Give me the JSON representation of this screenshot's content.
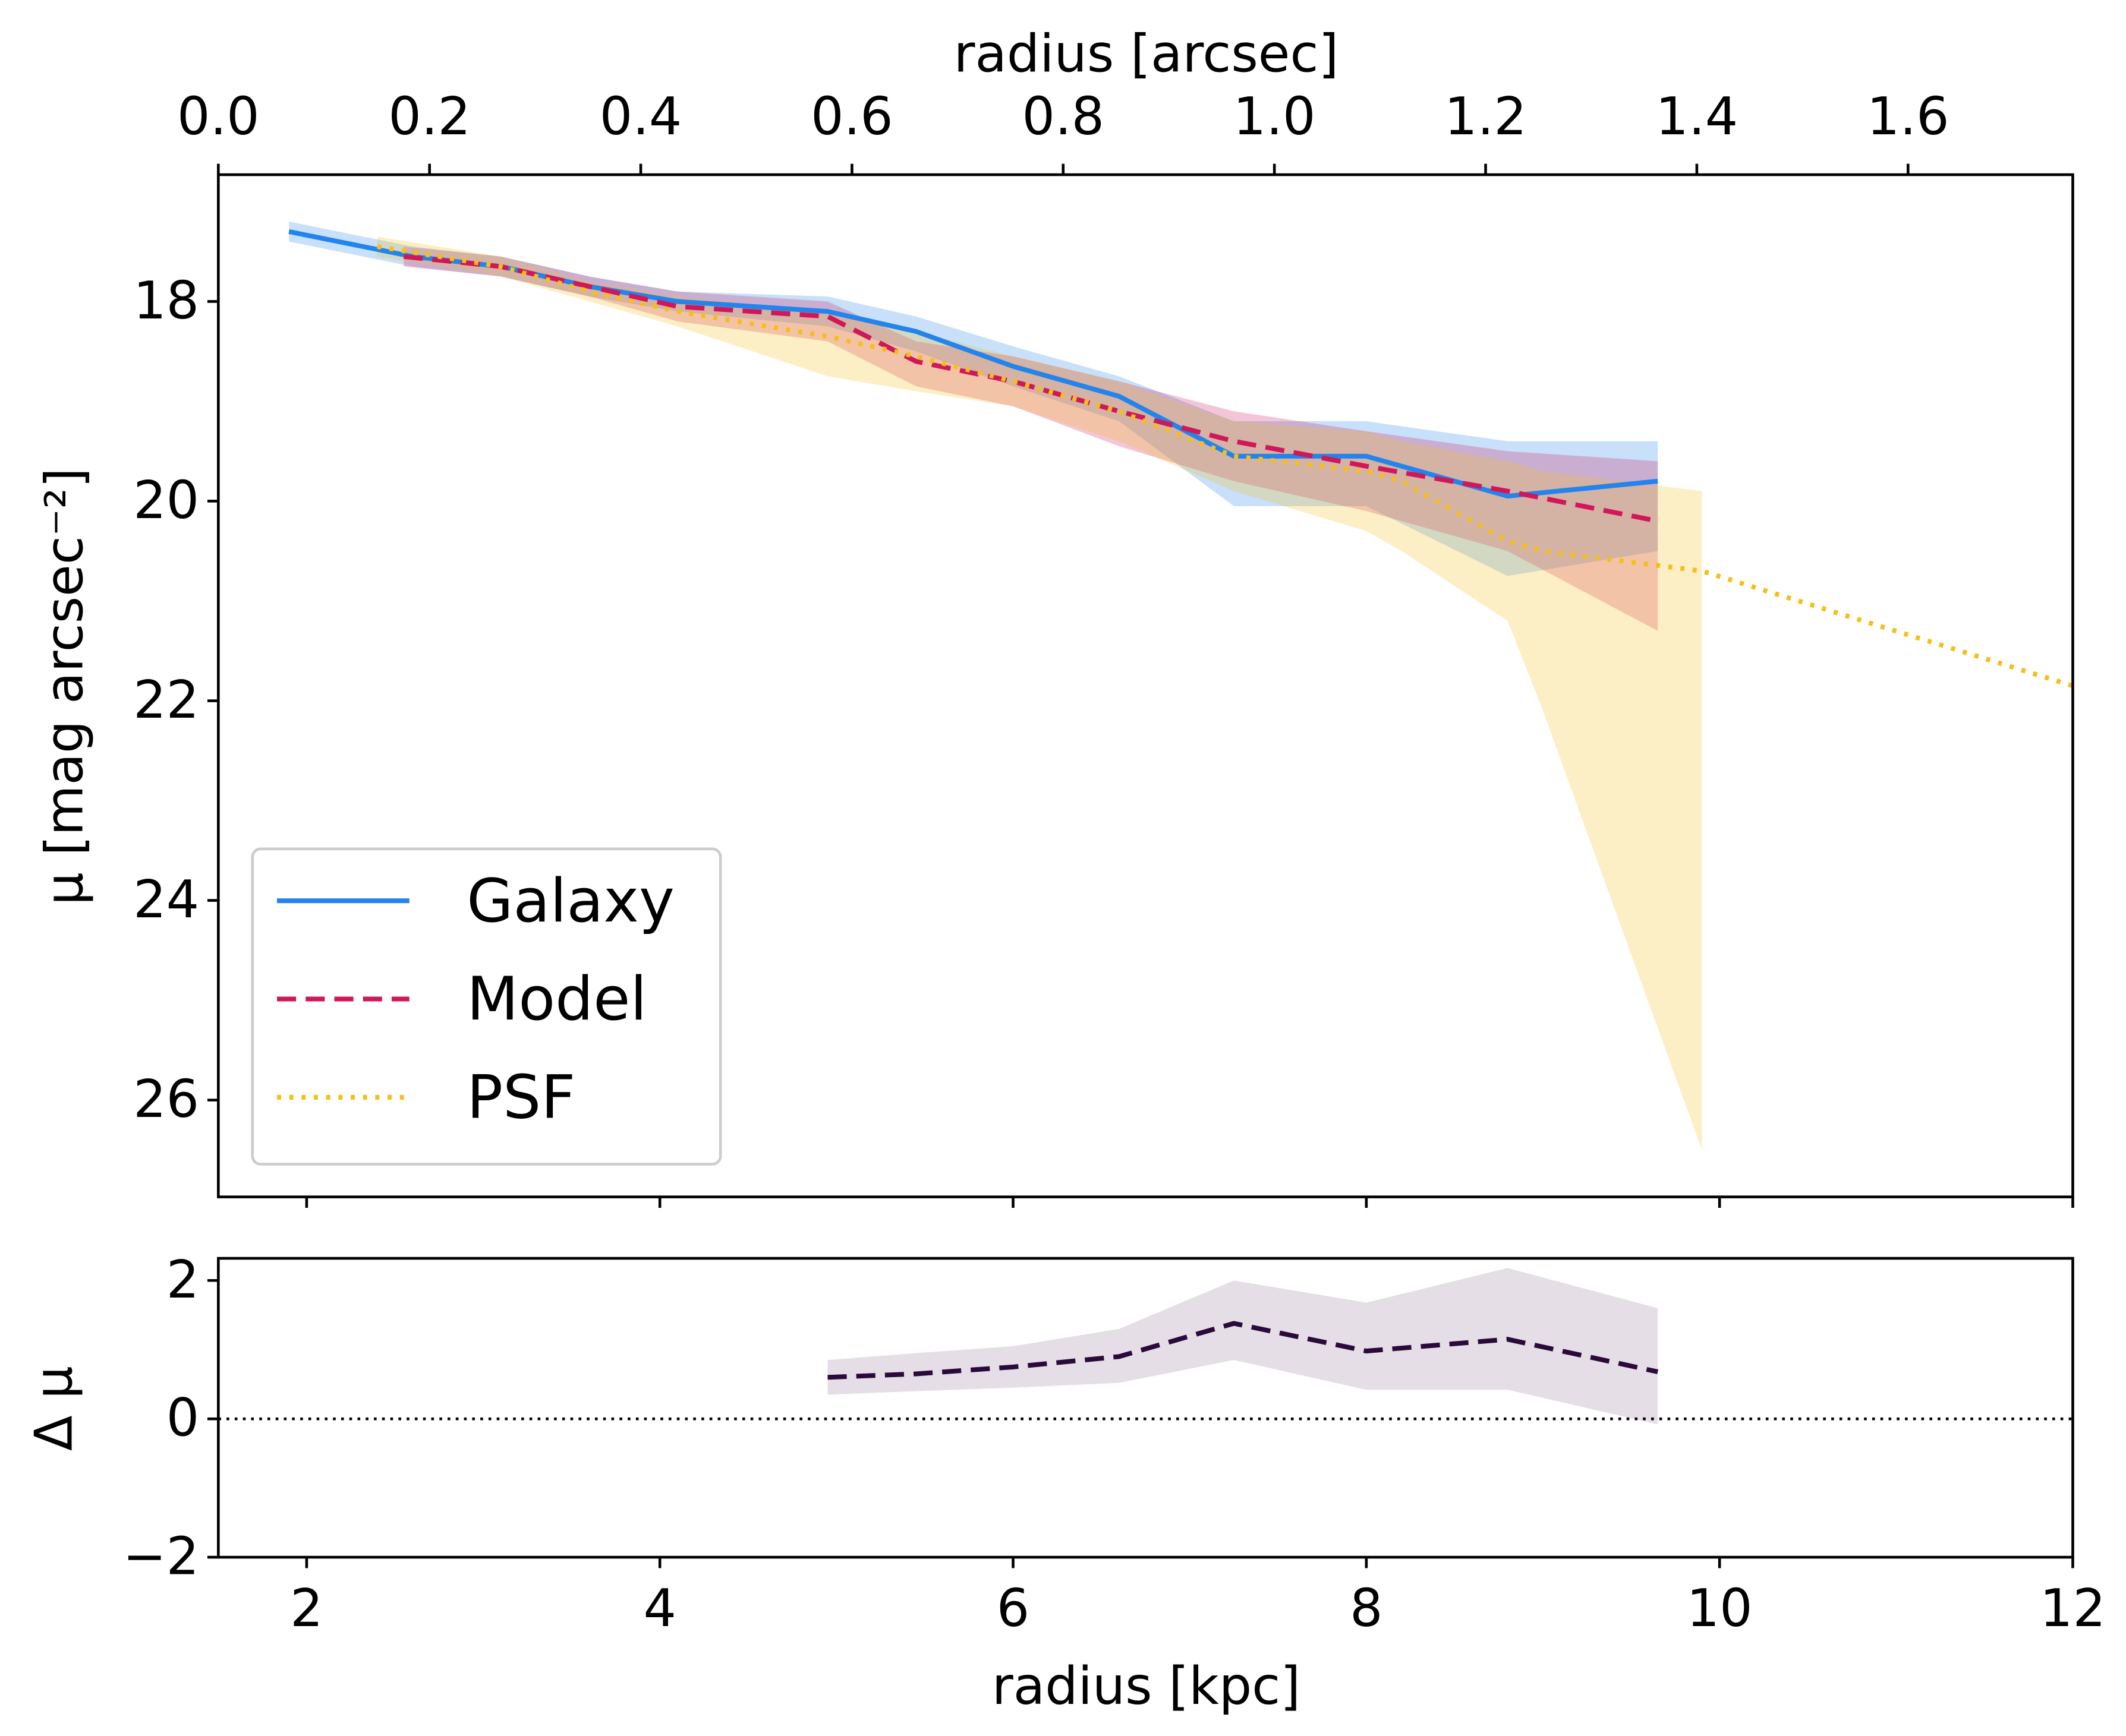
{
  "chart_data": [
    {
      "type": "line",
      "x2label": "radius [arcsec]",
      "ylabel": "μ [mag arcsec⁻²]",
      "xlim": [
        1.5,
        12
      ],
      "xticks": [
        2,
        4,
        6,
        8,
        10,
        12
      ],
      "x2lim": [
        0,
        1.756
      ],
      "x2ticks": [
        {
          "value": 0,
          "label": "0.0"
        },
        0.2,
        0.4,
        0.6,
        0.8,
        {
          "value": 1,
          "label": "1.0"
        },
        1.2,
        1.4,
        1.6
      ],
      "ylim": [
        16.73,
        26.97
      ],
      "y_inverted": true,
      "yticks": [
        18,
        20,
        22,
        24,
        26
      ],
      "legend": "lower left",
      "series": [
        {
          "name": "Galaxy",
          "color": "#2284ec",
          "style": "solid",
          "x": [
            1.9,
            2.6,
            3.1,
            3.6,
            4.1,
            4.95,
            5.45,
            6.0,
            6.6,
            7.25,
            8.0,
            8.8,
            9.65
          ],
          "values": [
            17.3,
            17.55,
            17.65,
            17.85,
            18.0,
            18.1,
            18.3,
            18.65,
            18.95,
            19.55,
            19.55,
            19.95,
            19.8
          ],
          "lower": [
            17.2,
            17.45,
            17.55,
            17.75,
            17.9,
            17.95,
            18.15,
            18.45,
            18.75,
            19.2,
            19.2,
            19.4,
            19.4
          ],
          "upper": [
            17.4,
            17.65,
            17.75,
            17.95,
            18.1,
            18.25,
            18.5,
            18.85,
            19.2,
            20.05,
            20.05,
            20.75,
            20.5
          ]
        },
        {
          "name": "Model",
          "color": "#d0175a",
          "style": "dashed",
          "x": [
            2.55,
            3.1,
            3.6,
            4.1,
            4.95,
            5.45,
            6.0,
            6.6,
            7.25,
            8.0,
            8.8,
            9.65
          ],
          "values": [
            17.55,
            17.65,
            17.85,
            18.05,
            18.15,
            18.6,
            18.8,
            19.1,
            19.4,
            19.65,
            19.9,
            20.2
          ],
          "lower": [
            17.45,
            17.55,
            17.75,
            17.9,
            18.0,
            18.4,
            18.55,
            18.8,
            19.1,
            19.3,
            19.5,
            19.6
          ],
          "upper": [
            17.65,
            17.75,
            17.95,
            18.2,
            18.4,
            18.85,
            19.05,
            19.45,
            19.8,
            20.1,
            20.5,
            21.3
          ]
        },
        {
          "name": "PSF",
          "color": "#f5bf1a",
          "style": "dotted",
          "x": [
            2.4,
            3.1,
            3.6,
            4.1,
            4.95,
            5.45,
            6.0,
            6.6,
            7.25,
            8.0,
            8.2,
            8.8,
            9.0,
            9.9,
            12
          ],
          "values": [
            17.45,
            17.65,
            17.9,
            18.1,
            18.35,
            18.55,
            18.8,
            19.1,
            19.55,
            19.7,
            19.8,
            20.4,
            20.5,
            20.7,
            21.85
          ],
          "lower": [
            17.35,
            17.55,
            17.8,
            17.95,
            18.1,
            18.3,
            18.55,
            18.8,
            19.2,
            19.3,
            19.4,
            19.6,
            19.7,
            19.9,
            null
          ],
          "upper": [
            17.55,
            17.75,
            18.0,
            18.25,
            18.75,
            18.9,
            19.05,
            19.4,
            19.9,
            20.3,
            20.5,
            21.2,
            22.1,
            26.5,
            null
          ]
        }
      ]
    },
    {
      "type": "line",
      "xlabel": "radius [kpc]",
      "ylabel": "Δ μ",
      "xlim": [
        1.5,
        12
      ],
      "xticks": [
        2,
        4,
        6,
        8,
        10,
        12
      ],
      "ylim": [
        -2,
        2.32
      ],
      "yticks": [
        {
          "value": -2,
          "label": "−2"
        },
        0,
        2
      ],
      "reference_line": 0,
      "series": [
        {
          "color": "#2a0a3a",
          "band_color": "#9a7a9e",
          "style": "dashed",
          "x": [
            4.95,
            5.45,
            6.0,
            6.6,
            7.25,
            8.0,
            8.8,
            9.65
          ],
          "values": [
            0.6,
            0.65,
            0.75,
            0.9,
            1.38,
            0.98,
            1.15,
            0.68
          ],
          "lower": [
            0.35,
            0.4,
            0.45,
            0.52,
            0.85,
            0.42,
            0.42,
            -0.08
          ],
          "upper": [
            0.85,
            0.95,
            1.05,
            1.3,
            2.0,
            1.68,
            2.18,
            1.6
          ]
        }
      ]
    }
  ]
}
